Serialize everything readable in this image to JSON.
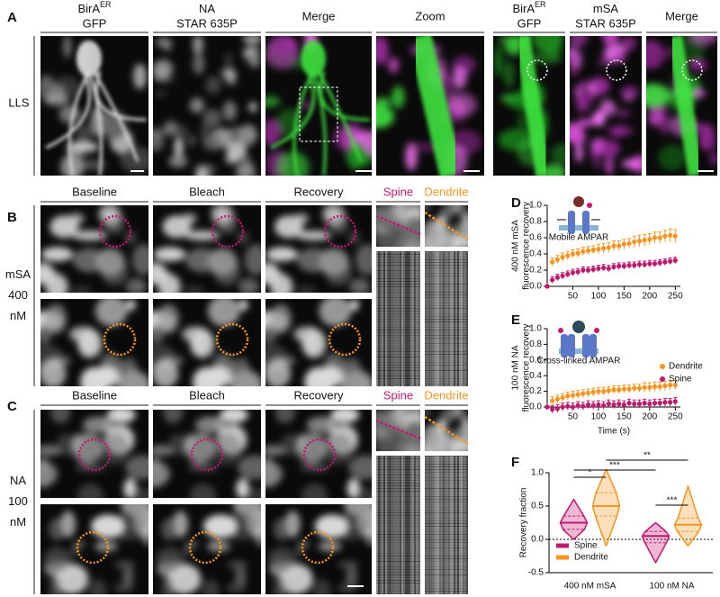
{
  "figure": {
    "panel_labels": [
      "A",
      "B",
      "C",
      "D",
      "E",
      "F"
    ],
    "a": {
      "row_label": "LLS",
      "headers": [
        {
          "main": "BirA",
          "sup": "ER",
          "line2": "GFP"
        },
        {
          "main": "NA",
          "line2": "STAR 635P"
        },
        {
          "main": "Merge"
        },
        {
          "main": "Zoom"
        },
        {
          "main": "BirA",
          "sup": "ER",
          "line2": "GFP"
        },
        {
          "main": "mSA",
          "line2": "STAR 635P"
        },
        {
          "main": "Merge"
        }
      ]
    },
    "b": {
      "row_label": [
        "mSA",
        "400",
        "nM"
      ],
      "headers": [
        "Baseline",
        "Bleach",
        "Recovery",
        "Spine",
        "Dendrite"
      ]
    },
    "c": {
      "row_label": [
        "NA",
        "100",
        "nM"
      ],
      "headers": [
        "Baseline",
        "Bleach",
        "Recovery",
        "Spine",
        "Dendrite"
      ]
    }
  },
  "chart_data": [
    {
      "type": "scatter",
      "annotation": "Mobile AMPAR",
      "ylabel": [
        "400 nM mSA",
        "fluorescence recovery"
      ],
      "xlim": [
        0,
        260
      ],
      "ylim": [
        0,
        1
      ],
      "xticks": [
        50,
        100,
        150,
        200,
        250
      ],
      "yticks": [
        {
          "value": 0,
          "label": "0.0"
        },
        0.2,
        0.4,
        0.6,
        0.8,
        {
          "value": 1,
          "label": "1.0"
        }
      ],
      "x": [
        0,
        10,
        20,
        30,
        40,
        50,
        60,
        70,
        80,
        90,
        100,
        110,
        120,
        130,
        140,
        150,
        160,
        170,
        180,
        190,
        200,
        210,
        220,
        230,
        240,
        250
      ],
      "series": [
        {
          "color": "#f7941d",
          "values": [
            0,
            0.3,
            0.33,
            0.36,
            0.38,
            0.4,
            0.41,
            0.43,
            0.44,
            0.45,
            0.46,
            0.47,
            0.48,
            0.5,
            0.5,
            0.52,
            0.53,
            0.55,
            0.56,
            0.57,
            0.58,
            0.6,
            0.6,
            0.62,
            0.63,
            0.62
          ],
          "errors": [
            0,
            0.05,
            0.05,
            0.05,
            0.05,
            0.05,
            0.05,
            0.05,
            0.05,
            0.05,
            0.06,
            0.06,
            0.06,
            0.06,
            0.06,
            0.06,
            0.06,
            0.07,
            0.07,
            0.07,
            0.07,
            0.07,
            0.07,
            0.07,
            0.08,
            0.08
          ]
        },
        {
          "color": "#c2176f",
          "values": [
            0,
            0.08,
            0.11,
            0.13,
            0.15,
            0.17,
            0.18,
            0.2,
            0.2,
            0.21,
            0.22,
            0.23,
            0.22,
            0.24,
            0.25,
            0.25,
            0.26,
            0.26,
            0.27,
            0.27,
            0.28,
            0.28,
            0.29,
            0.3,
            0.31,
            0.32
          ],
          "errors": [
            0,
            0.04,
            0.04,
            0.04,
            0.04,
            0.04,
            0.04,
            0.04,
            0.04,
            0.04,
            0.04,
            0.04,
            0.04,
            0.04,
            0.04,
            0.04,
            0.04,
            0.04,
            0.04,
            0.04,
            0.04,
            0.04,
            0.04,
            0.04,
            0.04,
            0.04
          ]
        }
      ]
    },
    {
      "type": "scatter",
      "annotation": "Cross-linked AMPAR",
      "ylabel": [
        "100 nM NA",
        "fluorescence recovery"
      ],
      "xlabel": "Time (s)",
      "xlim": [
        0,
        260
      ],
      "ylim": [
        0,
        1
      ],
      "xticks": [
        50,
        100,
        150,
        200,
        250
      ],
      "yticks": [
        {
          "value": 0,
          "label": "0.0"
        },
        0.2,
        0.4,
        0.6,
        0.8,
        {
          "value": 1,
          "label": "1.0"
        }
      ],
      "legend": "right",
      "x": [
        0,
        10,
        20,
        30,
        40,
        50,
        60,
        70,
        80,
        90,
        100,
        110,
        120,
        130,
        140,
        150,
        160,
        170,
        180,
        190,
        200,
        210,
        220,
        230,
        240,
        250
      ],
      "series": [
        {
          "name": "Dendrite",
          "color": "#f7941d",
          "values": [
            0,
            0.08,
            0.1,
            0.12,
            0.14,
            0.15,
            0.16,
            0.17,
            0.18,
            0.19,
            0.2,
            0.2,
            0.21,
            0.22,
            0.22,
            0.23,
            0.23,
            0.24,
            0.24,
            0.25,
            0.25,
            0.26,
            0.26,
            0.27,
            0.28,
            0.28
          ],
          "errors": [
            0,
            0.05,
            0.05,
            0.05,
            0.05,
            0.05,
            0.05,
            0.05,
            0.05,
            0.05,
            0.05,
            0.05,
            0.05,
            0.05,
            0.05,
            0.05,
            0.05,
            0.05,
            0.05,
            0.06,
            0.06,
            0.06,
            0.06,
            0.06,
            0.06,
            0.06
          ]
        },
        {
          "name": "Spine",
          "color": "#c2176f",
          "values": [
            0,
            -0.03,
            -0.02,
            0,
            0.01,
            0,
            0.02,
            0.01,
            0.03,
            0.02,
            0.03,
            0.02,
            0.04,
            0.03,
            0.04,
            0.03,
            0.05,
            0.04,
            0.04,
            0.05,
            0.04,
            0.05,
            0.05,
            0.06,
            0.06,
            0.07
          ],
          "errors": [
            0,
            0.05,
            0.05,
            0.05,
            0.05,
            0.05,
            0.05,
            0.05,
            0.05,
            0.05,
            0.05,
            0.05,
            0.05,
            0.05,
            0.05,
            0.05,
            0.05,
            0.05,
            0.05,
            0.05,
            0.05,
            0.05,
            0.05,
            0.05,
            0.05,
            0.05
          ]
        }
      ]
    },
    {
      "type": "violin",
      "ylabel": "Recovery fraction",
      "categories": [
        "400 nM mSA",
        "100 nM NA"
      ],
      "ylim": [
        -0.5,
        1
      ],
      "yticks": [
        -0.5,
        {
          "value": 0,
          "label": "0.0"
        },
        0.5,
        {
          "value": 1,
          "label": "1.0"
        }
      ],
      "hline": 0,
      "legend": "lower left",
      "series": [
        {
          "name": "Spine",
          "color": "#c2176f",
          "min": [
            0,
            -0.35
          ],
          "q1": [
            0.15,
            -0.05
          ],
          "median": [
            0.25,
            0.05
          ],
          "q3": [
            0.35,
            0.12
          ],
          "max": [
            0.6,
            0.25
          ]
        },
        {
          "name": "Dendrite",
          "color": "#f7941d",
          "min": [
            -0.1,
            -0.1
          ],
          "q1": [
            0.35,
            0.12
          ],
          "median": [
            0.5,
            0.22
          ],
          "q3": [
            0.7,
            0.32
          ],
          "max": [
            1.05,
            0.8
          ]
        }
      ],
      "annotations": [
        "*",
        "***",
        "**",
        "***"
      ]
    }
  ]
}
